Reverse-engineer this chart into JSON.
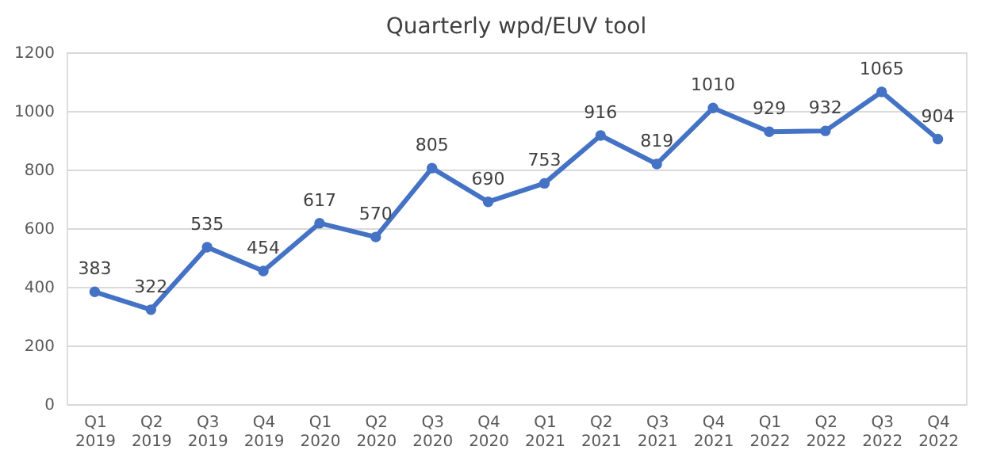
{
  "chart_data": {
    "type": "line",
    "title": "Quarterly wpd/EUV tool",
    "categories": [
      "Q1 2019",
      "Q2 2019",
      "Q3 2019",
      "Q4 2019",
      "Q1 2020",
      "Q2 2020",
      "Q3 2020",
      "Q4 2020",
      "Q1 2021",
      "Q2 2021",
      "Q3 2021",
      "Q4 2021",
      "Q1 2022",
      "Q2 2022",
      "Q3 2022",
      "Q4 2022"
    ],
    "series": [
      {
        "color": "#4472c4",
        "values": [
          383,
          322,
          535,
          454,
          617,
          570,
          805,
          690,
          753,
          916,
          819,
          1010,
          929,
          932,
          1065,
          904
        ]
      }
    ],
    "ylim": [
      0,
      1200
    ],
    "yticks": [
      0,
      200,
      400,
      600,
      800,
      1000,
      1200
    ],
    "grid": "y",
    "marker": "circle",
    "line_style": "solid",
    "data_labels": true,
    "legend": false
  }
}
